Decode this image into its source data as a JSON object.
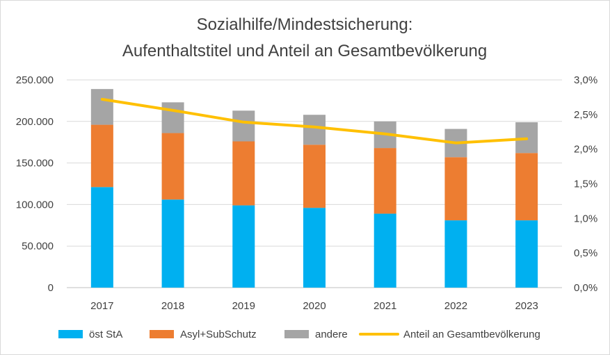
{
  "chart_data": {
    "type": "bar",
    "subtype": "stacked-bar-with-line-secondary-axis",
    "title": [
      "Sozialhilfe/Mindestsicherung:",
      "Aufenthaltstitel und Anteil an Gesamtbevölkerung"
    ],
    "categories": [
      "2017",
      "2018",
      "2019",
      "2020",
      "2021",
      "2022",
      "2023"
    ],
    "series": [
      {
        "name": "öst StA",
        "kind": "bar",
        "axis": "left",
        "color": "#00B0F0",
        "values": [
          121000,
          106000,
          99000,
          96000,
          89000,
          81000,
          81000
        ]
      },
      {
        "name": "Asyl+SubSchutz",
        "kind": "bar",
        "axis": "left",
        "color": "#ED7D31",
        "values": [
          75000,
          80000,
          77000,
          76000,
          79000,
          76000,
          81000
        ]
      },
      {
        "name": "andere",
        "kind": "bar",
        "axis": "left",
        "color": "#A5A5A5",
        "values": [
          43000,
          37000,
          37000,
          36000,
          32000,
          34000,
          37000
        ]
      },
      {
        "name": "Anteil an Gesamtbevölkerung",
        "kind": "line",
        "axis": "right",
        "color": "#FFC000",
        "values": [
          2.72,
          2.56,
          2.39,
          2.32,
          2.22,
          2.09,
          2.15
        ]
      }
    ],
    "y_left": {
      "min": 0,
      "max": 250000,
      "step": 50000,
      "tick_labels": [
        "0",
        "50.000",
        "100.000",
        "150.000",
        "200.000",
        "250.000"
      ]
    },
    "y_right": {
      "min": 0,
      "max": 3.0,
      "step": 0.5,
      "tick_labels": [
        "0,0%",
        "0,5%",
        "1,0%",
        "1,5%",
        "2,0%",
        "2,5%",
        "3,0%"
      ]
    },
    "grid": true,
    "legend_position": "bottom"
  }
}
